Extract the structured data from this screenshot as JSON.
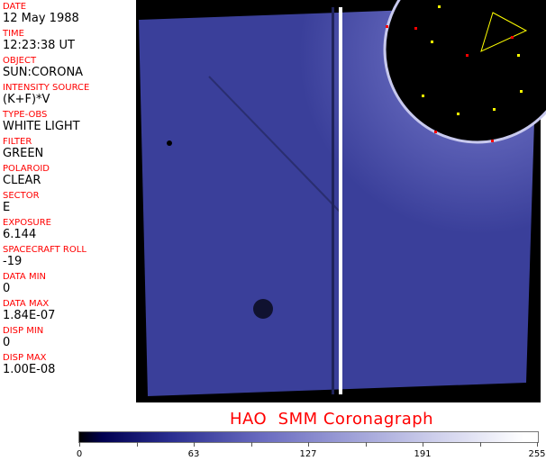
{
  "fields": [
    {
      "label": "DATE",
      "value": "12 May 1988"
    },
    {
      "label": "TIME",
      "value": "12:23:38 UT"
    },
    {
      "label": "OBJECT",
      "value": "SUN:CORONA"
    },
    {
      "label": "INTENSITY SOURCE",
      "value": "(K+F)*V"
    },
    {
      "label": "TYPE-OBS",
      "value": "WHITE LIGHT"
    },
    {
      "label": "FILTER",
      "value": "GREEN"
    },
    {
      "label": "POLAROID",
      "value": "CLEAR"
    },
    {
      "label": "SECTOR",
      "value": "E"
    },
    {
      "label": "EXPOSURE",
      "value": "6.144"
    },
    {
      "label": "SPACECRAFT ROLL",
      "value": "-19"
    },
    {
      "label": "DATA MIN",
      "value": "0"
    },
    {
      "label": "DATA MAX",
      "value": "1.84E-07"
    },
    {
      "label": "DISP MIN",
      "value": "0"
    },
    {
      "label": "DISP MAX",
      "value": "1.00E-08"
    }
  ],
  "title": "HAO  SMM Coronagraph",
  "colorbar": {
    "ticks": [
      "0",
      "63",
      "127",
      "191",
      "255"
    ],
    "colormap": "black-blue-white"
  },
  "colors": {
    "label": "#ff0000",
    "image_blue": "#3a3f9a"
  }
}
